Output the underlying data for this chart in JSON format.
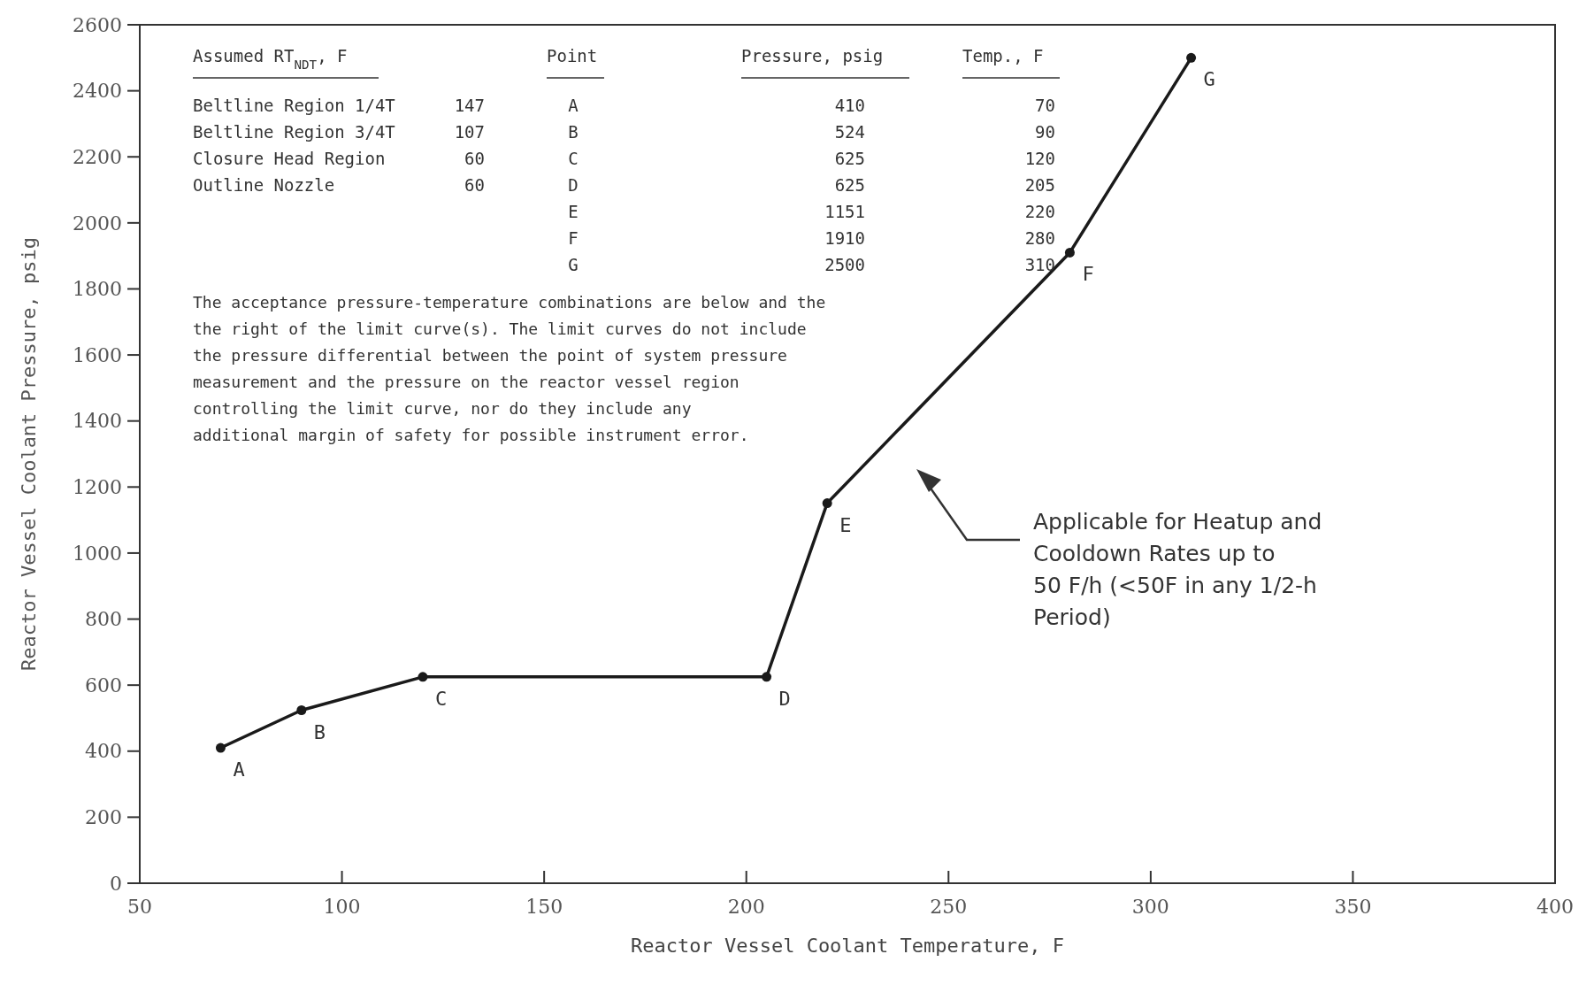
{
  "chart_data": {
    "type": "line",
    "xlabel": "Reactor Vessel Coolant Temperature, F",
    "ylabel": "Reactor Vessel Coolant Pressure, psig",
    "xlim": [
      50,
      400
    ],
    "xticks": [
      50,
      100,
      150,
      200,
      250,
      300,
      350,
      400
    ],
    "ylim": [
      0,
      2600
    ],
    "yticks": [
      0,
      200,
      400,
      600,
      800,
      1000,
      1200,
      1400,
      1600,
      1800,
      2000,
      2200,
      2400,
      2600
    ],
    "grid": false,
    "marker": "circle",
    "line_style": "solid",
    "series": [
      {
        "color": "#1a1a1a",
        "x": [
          70,
          90,
          120,
          205,
          220,
          280,
          310
        ],
        "values": [
          410,
          524,
          625,
          625,
          1151,
          1910,
          2500
        ],
        "value_labels": [
          "A",
          "B",
          "C",
          "D",
          "E",
          "F",
          "G"
        ]
      }
    ],
    "annotations": [
      "Assumed RT$_{NDT}$, F",
      "Point",
      "Pressure, psig",
      "Temp., F",
      "Beltline Region 1/4T",
      "147",
      "Beltline Region 3/4T",
      "107",
      "Closure Head Region",
      "60",
      "Outline Nozzle",
      "60",
      "A",
      "410",
      "70",
      "B",
      "524",
      "90",
      "C",
      "625",
      "120",
      "D",
      "625",
      "205",
      "E",
      "1151",
      "220",
      "F",
      "1910",
      "280",
      "G",
      "2500",
      "310",
      "The acceptance pressure-temperature combinations are below and the",
      "the right of the limit curve(s). The limit curves do not include",
      "the pressure differential between the point of system pressure",
      "measurement and the pressure on the reactor vessel region",
      "controlling the limit curve, nor do they include any",
      "additional margin of safety for possible instrument error.",
      "Applicable for Heatup and\nCooldown Rates up to\n50 F/h (<50F in any 1/2-h\nPeriod)"
    ]
  }
}
